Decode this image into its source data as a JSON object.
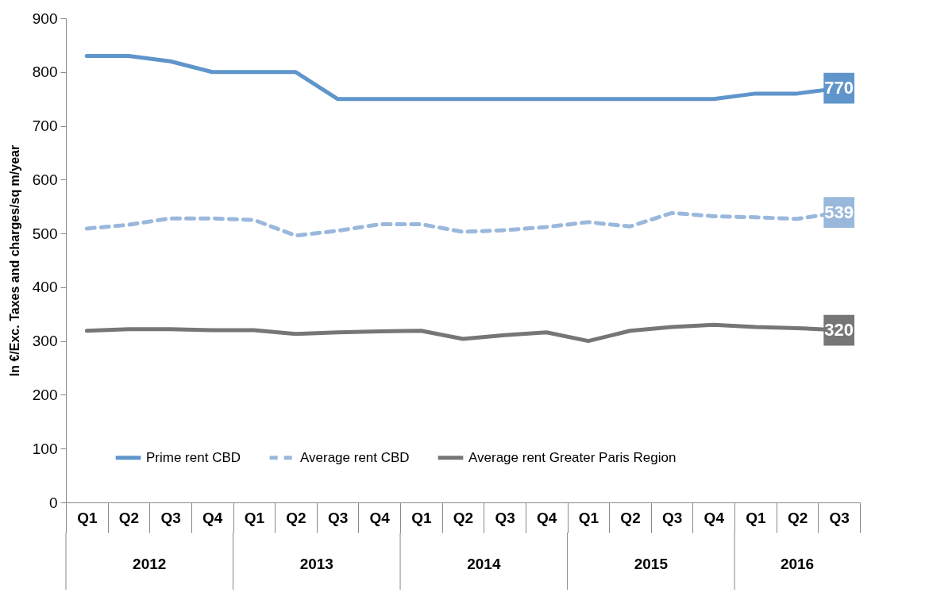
{
  "chart_data": {
    "type": "line",
    "ylabel": "In €/Exc. Taxes and charges/sq m/year",
    "categories": [
      "Q1",
      "Q2",
      "Q3",
      "Q4",
      "Q1",
      "Q2",
      "Q3",
      "Q4",
      "Q1",
      "Q2",
      "Q3",
      "Q4",
      "Q1",
      "Q2",
      "Q3",
      "Q4",
      "Q1",
      "Q2",
      "Q3"
    ],
    "annotations": [
      "2012",
      "2013",
      "2014",
      "2015",
      "2016"
    ],
    "series": [
      {
        "name": "Prime rent CBD",
        "color": "#5f95cb",
        "line_style": "solid",
        "values": [
          830,
          830,
          820,
          800,
          800,
          800,
          750,
          750,
          750,
          750,
          750,
          750,
          750,
          750,
          750,
          750,
          760,
          760,
          770
        ],
        "value_labels": [
          null,
          null,
          null,
          null,
          null,
          null,
          null,
          null,
          null,
          null,
          null,
          null,
          null,
          null,
          null,
          null,
          null,
          null,
          "770"
        ]
      },
      {
        "name": "Average rent CBD",
        "color": "#9ab8dc",
        "line_style": "dashed",
        "values": [
          509,
          516,
          528,
          528,
          525,
          496,
          505,
          517,
          517,
          503,
          506,
          512,
          521,
          513,
          538,
          532,
          530,
          527,
          539
        ],
        "value_labels": [
          null,
          null,
          null,
          null,
          null,
          null,
          null,
          null,
          null,
          null,
          null,
          null,
          null,
          null,
          null,
          null,
          null,
          null,
          "539"
        ]
      },
      {
        "name": "Average rent  Greater Paris Region",
        "color": "#767676",
        "line_style": "solid",
        "values": [
          319,
          322,
          322,
          320,
          320,
          313,
          316,
          318,
          319,
          304,
          311,
          316,
          300,
          319,
          326,
          330,
          326,
          324,
          320
        ],
        "value_labels": [
          null,
          null,
          null,
          null,
          null,
          null,
          null,
          null,
          null,
          null,
          null,
          null,
          null,
          null,
          null,
          null,
          null,
          null,
          "320"
        ]
      }
    ],
    "ylim": [
      0,
      900
    ],
    "yticks": [
      0,
      100,
      200,
      300,
      400,
      500,
      600,
      700,
      800,
      900
    ],
    "grid": false,
    "legend": "bottom",
    "marker": "none"
  }
}
